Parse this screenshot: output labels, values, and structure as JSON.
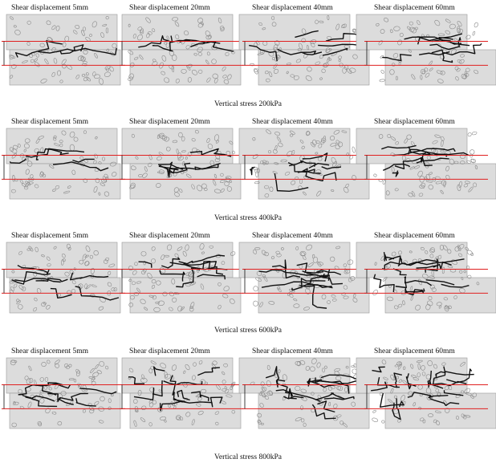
{
  "rows": [
    {
      "panels": [
        "Shear displacement  5mm",
        "Shear displacement  20mm",
        "Shear displacement  40mm",
        "Shear displacement  60mm"
      ],
      "stress": "Vertical stress  200kPa"
    },
    {
      "panels": [
        "Shear displacement  5mm",
        "Shear displacement  20mm",
        "Shear displacement  40mm",
        "Shear displacement  60mm"
      ],
      "stress": "Vertical stress  400kPa"
    },
    {
      "panels": [
        "Shear displacement  5mm",
        "Shear displacement  20mm",
        "Shear displacement  40mm",
        "Shear displacement  60mm"
      ],
      "stress": "Vertical stress  600kPa"
    },
    {
      "panels": [
        "Shear displacement  5mm",
        "Shear displacement  20mm",
        "Shear displacement  40mm",
        "Shear displacement  60mm"
      ],
      "stress": "Vertical stress  800kPa"
    }
  ]
}
